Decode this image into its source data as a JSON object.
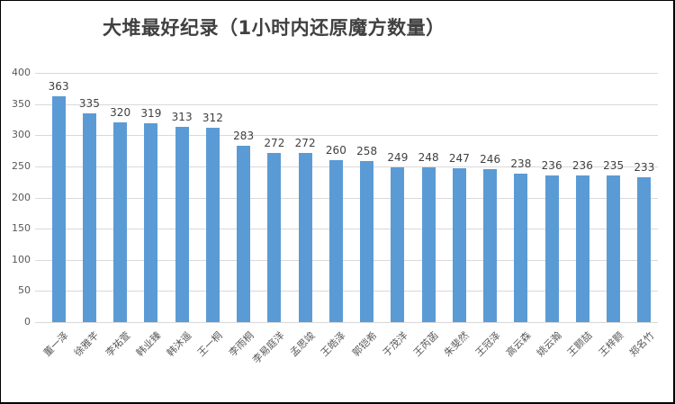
{
  "chart_data": {
    "type": "bar",
    "title": "大堆最好纪录（1小时内还原魔方数量）",
    "categories": [
      "董一泽",
      "徐雅芊",
      "李祐萱",
      "韩业臻",
      "韩沐遥",
      "王一桐",
      "李雨桐",
      "李易庭洋",
      "孟思竣",
      "王皓泽",
      "郭铠希",
      "于茂洋",
      "王芮菡",
      "朱斐然",
      "王冠泽",
      "高云森",
      "姚云瀚",
      "王颢喆",
      "王梓颢",
      "郑名竹"
    ],
    "values": [
      363,
      335,
      320,
      319,
      313,
      312,
      283,
      272,
      272,
      260,
      258,
      249,
      248,
      247,
      246,
      238,
      236,
      236,
      235,
      233
    ],
    "xlabel": "",
    "ylabel": "",
    "ylim": [
      0,
      400
    ],
    "yticks": [
      0,
      50,
      100,
      150,
      200,
      250,
      300,
      350,
      400
    ],
    "grid": true,
    "legend_position": "none",
    "data_labels": true
  },
  "colors": {
    "bar": "#5B9BD5",
    "gridline": "#D9D9D9",
    "axis_line": "#D9D9D9",
    "tick_text": "#595959",
    "category_text": "#595959",
    "value_label_text": "#404040",
    "title_text": "#404040",
    "frame_border": "#000000",
    "background": "#FFFFFF"
  }
}
